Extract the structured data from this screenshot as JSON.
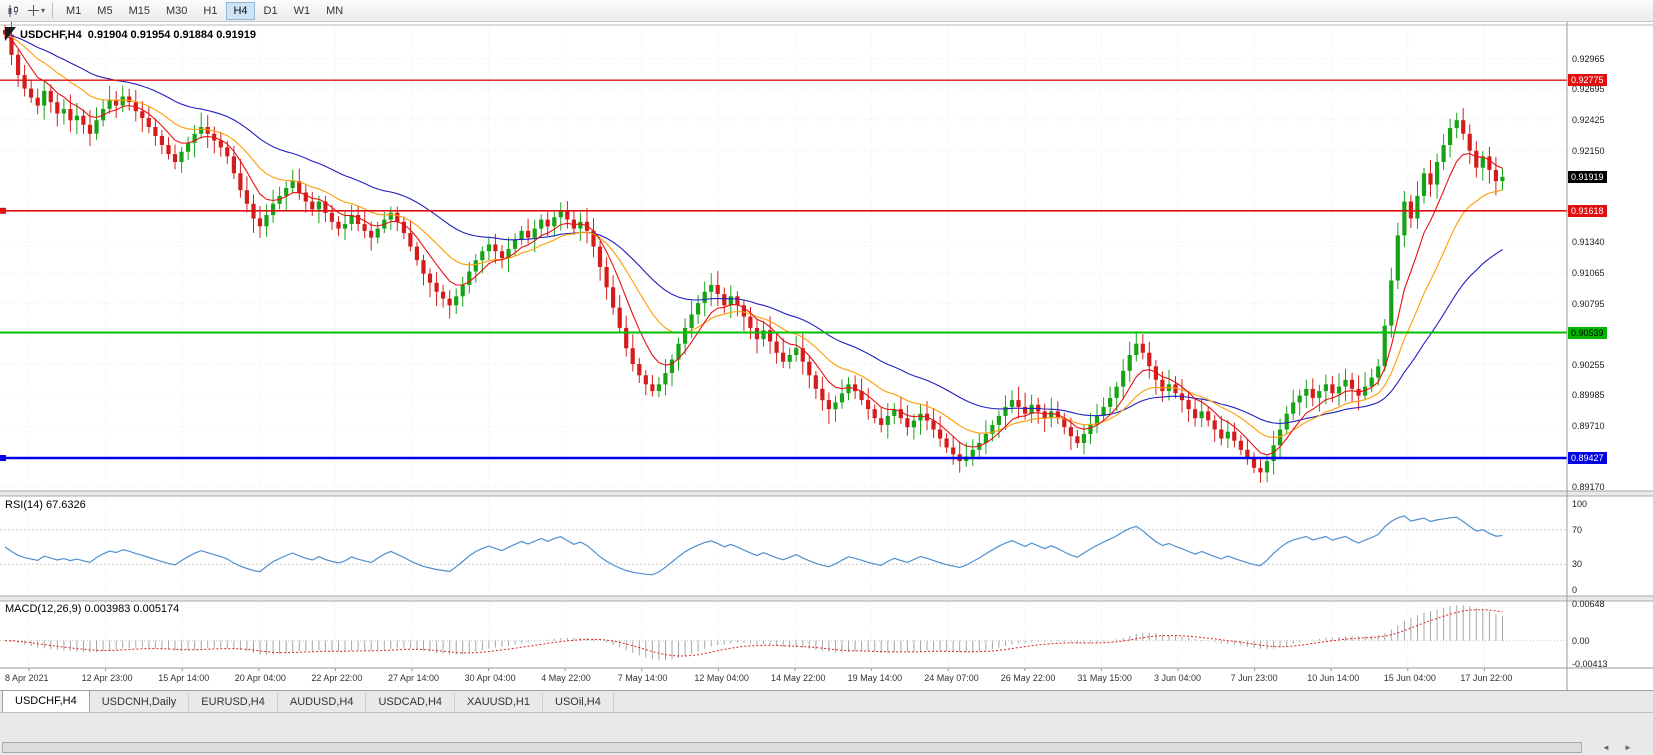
{
  "toolbar": {
    "timeframes": [
      "M1",
      "M5",
      "M15",
      "M30",
      "H1",
      "H4",
      "D1",
      "W1",
      "MN"
    ],
    "active_timeframe": "H4"
  },
  "chart_data": {
    "type": "candlestick",
    "symbol_period": "USDCHF,H4",
    "ohlc_text": "0.91904 0.91954 0.91884 0.91919",
    "current": {
      "open": 0.91904,
      "high": 0.91954,
      "low": 0.91884,
      "close": 0.91919
    },
    "closes": [
      0.9318,
      0.93,
      0.9282,
      0.927,
      0.9262,
      0.9255,
      0.9268,
      0.9258,
      0.9248,
      0.9252,
      0.9242,
      0.9246,
      0.9238,
      0.923,
      0.9242,
      0.9252,
      0.926,
      0.9255,
      0.9263,
      0.9258,
      0.925,
      0.9244,
      0.9236,
      0.9228,
      0.922,
      0.9212,
      0.9205,
      0.9214,
      0.9222,
      0.923,
      0.9236,
      0.923,
      0.9224,
      0.9218,
      0.921,
      0.9195,
      0.918,
      0.9168,
      0.9155,
      0.9148,
      0.9158,
      0.9168,
      0.9175,
      0.9182,
      0.9188,
      0.9178,
      0.917,
      0.9163,
      0.917,
      0.916,
      0.9152,
      0.9146,
      0.915,
      0.9158,
      0.915,
      0.9144,
      0.9138,
      0.9146,
      0.9154,
      0.916,
      0.9152,
      0.9142,
      0.913,
      0.9118,
      0.9106,
      0.9098,
      0.909,
      0.9084,
      0.9078,
      0.9086,
      0.9096,
      0.9108,
      0.9118,
      0.9126,
      0.9132,
      0.9126,
      0.912,
      0.9128,
      0.9136,
      0.9144,
      0.9138,
      0.9146,
      0.9154,
      0.9148,
      0.9156,
      0.9162,
      0.9154,
      0.9146,
      0.9152,
      0.9144,
      0.913,
      0.9112,
      0.9094,
      0.9076,
      0.9058,
      0.904,
      0.9026,
      0.9016,
      0.9008,
      0.9002,
      0.9008,
      0.9018,
      0.903,
      0.9044,
      0.9058,
      0.907,
      0.908,
      0.909,
      0.9096,
      0.9088,
      0.9078,
      0.9086,
      0.9078,
      0.9068,
      0.9058,
      0.9048,
      0.9056,
      0.9046,
      0.9036,
      0.9028,
      0.9034,
      0.904,
      0.9028,
      0.9016,
      0.9004,
      0.8994,
      0.8986,
      0.8992,
      0.9,
      0.9008,
      0.9002,
      0.8994,
      0.8986,
      0.8978,
      0.8972,
      0.898,
      0.8986,
      0.8978,
      0.897,
      0.8976,
      0.8982,
      0.8976,
      0.8968,
      0.896,
      0.8952,
      0.8946,
      0.894,
      0.8944,
      0.895,
      0.8956,
      0.8964,
      0.8972,
      0.898,
      0.8988,
      0.8994,
      0.8988,
      0.8982,
      0.899,
      0.8984,
      0.8978,
      0.8984,
      0.8978,
      0.897,
      0.8962,
      0.8956,
      0.8964,
      0.8972,
      0.898,
      0.8988,
      0.8996,
      0.9006,
      0.902,
      0.9034,
      0.9044,
      0.9036,
      0.9024,
      0.9012,
      0.9002,
      0.9008,
      0.9,
      0.8994,
      0.8986,
      0.8978,
      0.8984,
      0.8976,
      0.8968,
      0.896,
      0.8966,
      0.8958,
      0.895,
      0.8942,
      0.8934,
      0.893,
      0.894,
      0.8954,
      0.8968,
      0.8982,
      0.8992,
      0.8998,
      0.9004,
      0.8996,
      0.9002,
      0.9008,
      0.9,
      0.9006,
      0.9012,
      0.9004,
      0.8998,
      0.9006,
      0.9014,
      0.9024,
      0.906,
      0.91,
      0.914,
      0.917,
      0.9155,
      0.9175,
      0.9195,
      0.9185,
      0.9205,
      0.922,
      0.9235,
      0.9242,
      0.923,
      0.9215,
      0.92,
      0.921,
      0.9198,
      0.9188,
      0.91919
    ],
    "price_axis": [
      {
        "text": "0.92965",
        "price": 0.92965,
        "style": "plain"
      },
      {
        "text": "0.92775",
        "price": 0.92775,
        "style": "badge",
        "bg": "#e01010",
        "fg": "#ffffff"
      },
      {
        "text": "0.92695",
        "price": 0.92695,
        "style": "plain"
      },
      {
        "text": "0.92425",
        "price": 0.92425,
        "style": "plain"
      },
      {
        "text": "0.92150",
        "price": 0.9215,
        "style": "plain"
      },
      {
        "text": "0.91919",
        "price": 0.91919,
        "style": "badge",
        "bg": "#000000",
        "fg": "#ffffff"
      },
      {
        "text": "0.91618",
        "price": 0.91618,
        "style": "badge",
        "bg": "#e01010",
        "fg": "#ffffff"
      },
      {
        "text": "0.91340",
        "price": 0.9134,
        "style": "plain"
      },
      {
        "text": "0.91065",
        "price": 0.91065,
        "style": "plain"
      },
      {
        "text": "0.90795",
        "price": 0.90795,
        "style": "plain"
      },
      {
        "text": "0.90539",
        "price": 0.90539,
        "style": "badge",
        "bg": "#00b400",
        "fg": "#000000"
      },
      {
        "text": "0.90255",
        "price": 0.90255,
        "style": "plain"
      },
      {
        "text": "0.89985",
        "price": 0.89985,
        "style": "plain"
      },
      {
        "text": "0.89710",
        "price": 0.8971,
        "style": "plain"
      },
      {
        "text": "0.89427",
        "price": 0.89427,
        "style": "badge",
        "bg": "#0000e0",
        "fg": "#ffffff"
      },
      {
        "text": "0.89170",
        "price": 0.8917,
        "style": "plain"
      }
    ],
    "hlines": [
      {
        "price": 0.92775,
        "color": "#e01010",
        "width": 1.4,
        "handle": false
      },
      {
        "price": 0.91618,
        "color": "#e01010",
        "width": 1.6,
        "handle": true
      },
      {
        "price": 0.90539,
        "color": "#00c000",
        "width": 2,
        "handle": false
      },
      {
        "price": 0.89427,
        "color": "#0000ee",
        "width": 2.4,
        "handle": true
      }
    ],
    "moving_averages": [
      {
        "period": 7,
        "color": "#e81010"
      },
      {
        "period": 16,
        "color": "#ff9c00"
      },
      {
        "period": 34,
        "color": "#2020c0"
      }
    ],
    "time_axis": [
      "8 Apr 2021",
      "12 Apr 23:00",
      "15 Apr 14:00",
      "20 Apr 04:00",
      "22 Apr 22:00",
      "27 Apr 14:00",
      "30 Apr 04:00",
      "4 May 22:00",
      "7 May 14:00",
      "12 May 04:00",
      "14 May 22:00",
      "19 May 14:00",
      "24 May 07:00",
      "26 May 22:00",
      "31 May 15:00",
      "3 Jun 04:00",
      "7 Jun 23:00",
      "10 Jun 14:00",
      "15 Jun 04:00",
      "17 Jun 22:00"
    ],
    "rsi": {
      "text": "RSI(14) 67.6326",
      "period": 14,
      "value": 67.6326,
      "axis": [
        "100",
        "70",
        "30",
        "0"
      ],
      "axis_values": [
        100,
        70,
        30,
        0
      ],
      "levels": [
        70,
        30
      ],
      "color": "#4f8fd0"
    },
    "macd": {
      "text": "MACD(12,26,9) 0.003983 0.005174",
      "fast": 12,
      "slow": 26,
      "signal": 9,
      "macd_value": 0.003983,
      "signal_value": 0.005174,
      "axis": [
        {
          "text": "0.00648",
          "value": 0.00648
        },
        {
          "text": "0.00",
          "value": 0
        },
        {
          "text": "-0.00413",
          "value": -0.00413
        }
      ],
      "histogram_color": "#a6a6a6",
      "signal_color": "#e02020"
    }
  },
  "tabs": [
    {
      "label": "USDCHF,H4",
      "active": true
    },
    {
      "label": "USDCNH,Daily",
      "active": false
    },
    {
      "label": "EURUSD,H4",
      "active": false
    },
    {
      "label": "AUDUSD,H4",
      "active": false
    },
    {
      "label": "USDCAD,H4",
      "active": false
    },
    {
      "label": "XAUUSD,H1",
      "active": false
    },
    {
      "label": "USOil,H4",
      "active": false
    }
  ],
  "scrollbar": {
    "left_arrow": "◄",
    "right_arrow": "►"
  }
}
